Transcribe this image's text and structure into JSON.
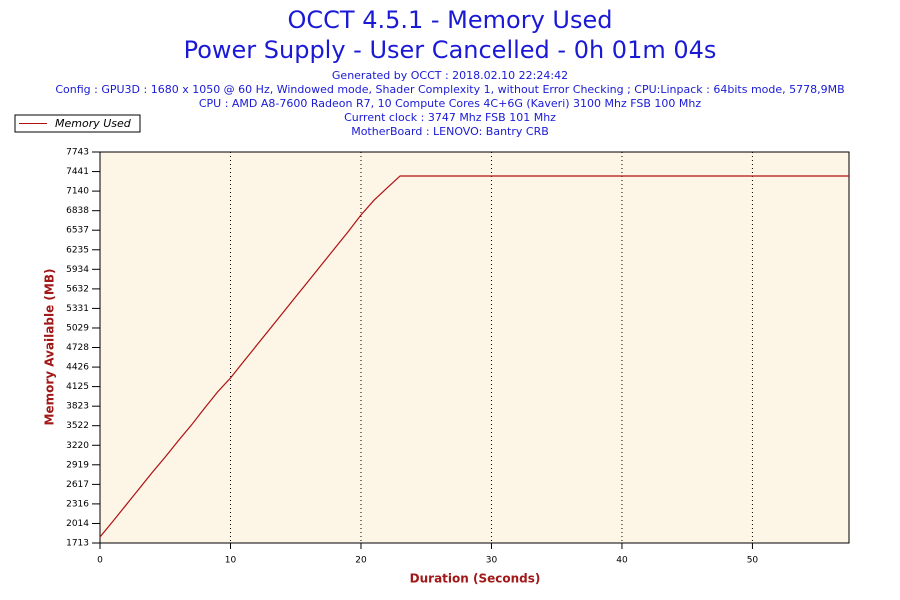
{
  "chart_data": {
    "type": "line",
    "title": "OCCT 4.5.1 - Memory Used",
    "subtitle": "Power Supply - User Cancelled - 0h 01m 04s",
    "info_lines": [
      "Generated by OCCT : 2018.02.10 22:24:42",
      "Config : GPU3D : 1680 x 1050 @ 60 Hz, Windowed mode, Shader Complexity 1, without Error Checking ; CPU:Linpack : 64bits mode, 5778,9MB",
      "CPU : AMD A8-7600 Radeon R7, 10 Compute Cores 4C+6G (Kaveri) 3100 Mhz FSB 100 Mhz",
      "Current clock : 3747 Mhz FSB 101 Mhz",
      "MotherBoard : LENOVO: Bantry CRB"
    ],
    "x_label": "Duration (Seconds)",
    "y_label": "Memory Available (MB)",
    "x": [
      0,
      1,
      2,
      3,
      4,
      5,
      6,
      7,
      8,
      9,
      10,
      11,
      12,
      13,
      14,
      15,
      16,
      17,
      18,
      19,
      20,
      21,
      22,
      23,
      57.4
    ],
    "series": [
      {
        "name": "Memory Used",
        "color": "#b01010",
        "values": [
          1806,
          2050,
          2300,
          2550,
          2800,
          3040,
          3290,
          3530,
          3790,
          4040,
          4258,
          4510,
          4760,
          5010,
          5260,
          5510,
          5760,
          6010,
          6260,
          6510,
          6771,
          7000,
          7188,
          7373,
          7373
        ]
      }
    ],
    "xlim": [
      0,
      57.4
    ],
    "xticks": [
      0,
      10,
      20,
      30,
      40,
      50
    ],
    "ylim": [
      1713,
      7743
    ],
    "yticks": [
      1713,
      2014,
      2316,
      2617,
      2919,
      3220,
      3522,
      3823,
      4125,
      4426,
      4728,
      5029,
      5331,
      5632,
      5934,
      6235,
      6537,
      6838,
      7140,
      7441,
      7743
    ],
    "grid": "x"
  }
}
